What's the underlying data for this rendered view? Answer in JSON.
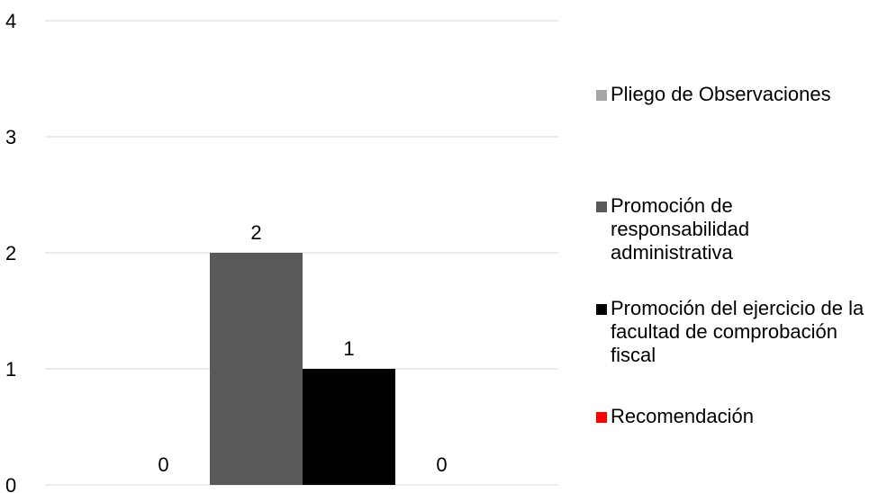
{
  "chart_data": {
    "type": "bar",
    "categories": [
      ""
    ],
    "series": [
      {
        "name": "Pliego de Observaciones",
        "values": [
          0
        ],
        "color": "#a6a6a6"
      },
      {
        "name": "Promoción de responsabilidad administrativa",
        "values": [
          2
        ],
        "color": "#595959"
      },
      {
        "name": "Promoción del ejercicio de la facultad de comprobación fiscal",
        "values": [
          1
        ],
        "color": "#000000"
      },
      {
        "name": "Recomendación",
        "values": [
          0
        ],
        "color": "#ff0000"
      }
    ],
    "ylim": [
      0,
      4
    ],
    "yticks": [
      "0",
      "1",
      "2",
      "3",
      "4"
    ],
    "data_labels": [
      "0",
      "2",
      "1",
      "0"
    ],
    "grid": true,
    "legend_position": "right"
  }
}
